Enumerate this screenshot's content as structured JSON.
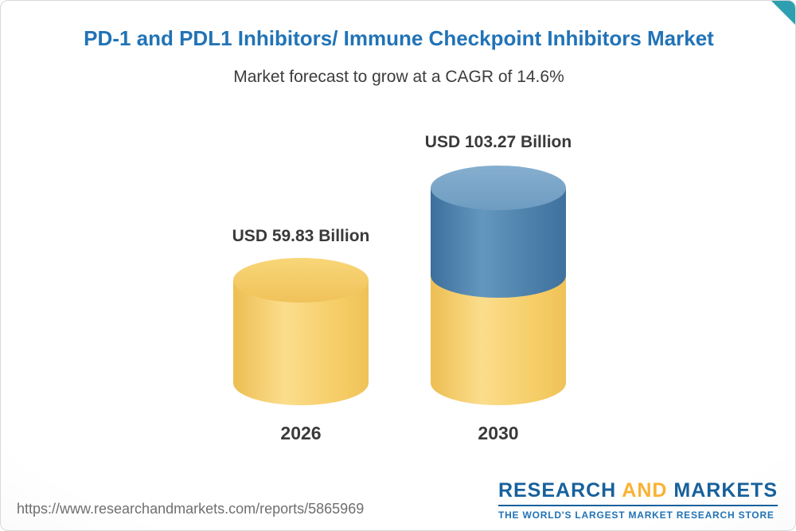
{
  "chart_data": {
    "type": "bar",
    "subtype": "3d-cylinder",
    "title": "PD-1 and PDL1 Inhibitors/ Immune Checkpoint Inhibitors Market",
    "subtitle": "Market forecast to grow at a CAGR of 14.6%",
    "cagr_percent": 14.6,
    "unit": "USD Billion",
    "categories": [
      "2026",
      "2030"
    ],
    "values": [
      59.83,
      103.27
    ],
    "value_labels": [
      "USD 59.83 Billion",
      "USD 103.27 Billion"
    ],
    "ylim": [
      0,
      110
    ],
    "grid": false,
    "legend": false,
    "colors": {
      "bar_base_yellow": "#F6CE69",
      "bar_growth_blue": "#4C80AA",
      "title_text": "#2173B6",
      "label_text": "#3A3A3A"
    },
    "note": "2030 cylinder is stacked: yellow base segment (equal to 2026 level) with blue growth segment on top reaching 103.27"
  },
  "footer": {
    "report_url": "https://www.researchandmarkets.com/reports/5865969",
    "logo": {
      "word_research": "RESEARCH",
      "word_and": "AND",
      "word_markets": "MARKETS",
      "tagline": "THE WORLD'S LARGEST MARKET RESEARCH STORE",
      "brand_blue": "#17619C",
      "brand_yellow": "#F9B233"
    }
  },
  "theme": {
    "corner_accent": "#2E9FB0",
    "background": "#F5F5F5"
  }
}
